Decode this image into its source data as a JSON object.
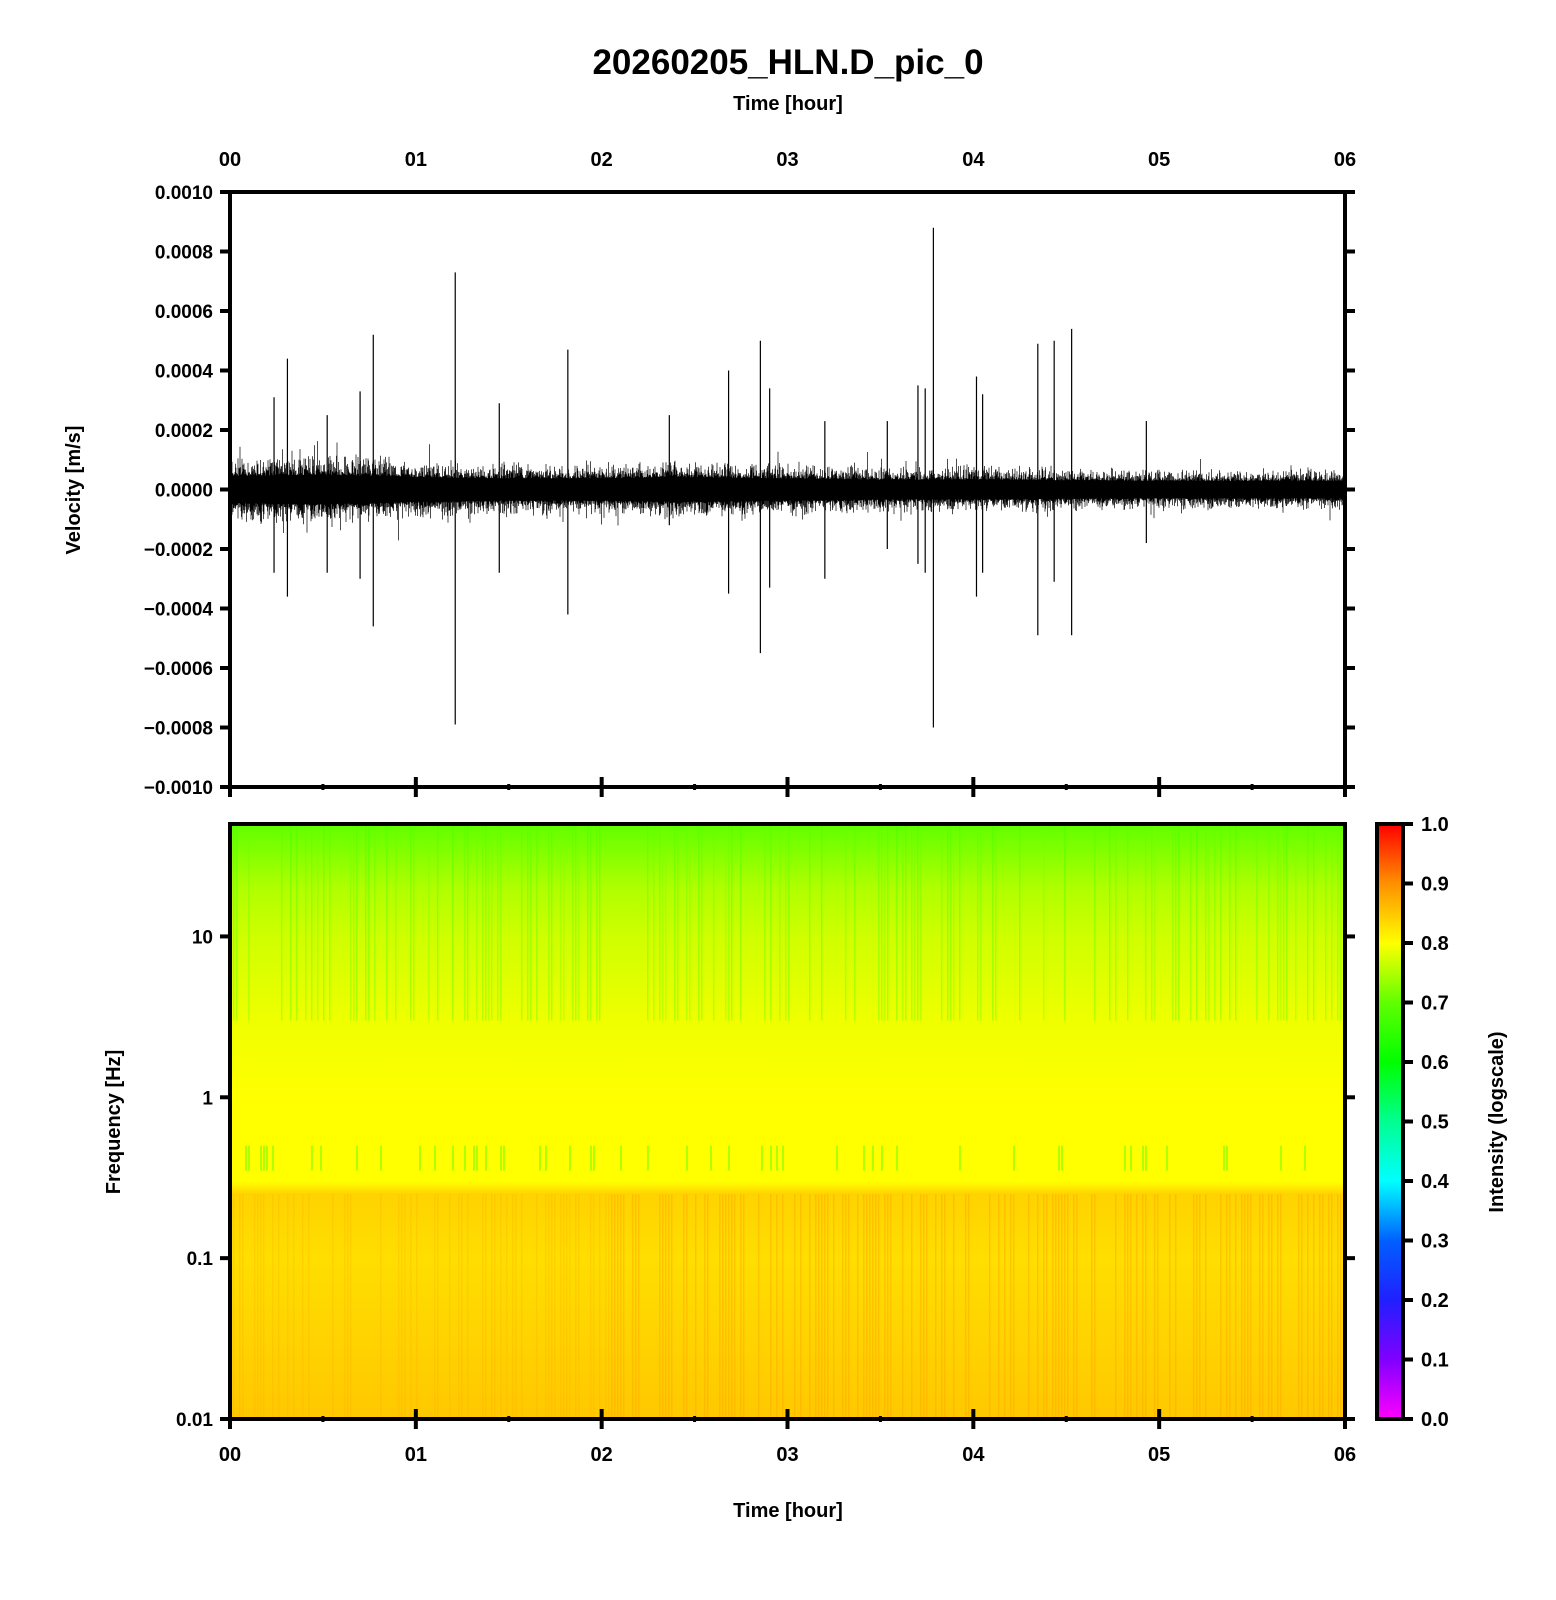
{
  "title": "20260205_HLN.D_pic_0",
  "chart_data": [
    {
      "type": "line",
      "name": "waveform",
      "top_xlabel": "Time [hour]",
      "ylabel": "Velocity [m/s]",
      "xlim": [
        0,
        6
      ],
      "ylim": [
        -0.001,
        0.001
      ],
      "x_tick_labels": [
        "00",
        "01",
        "02",
        "03",
        "04",
        "05",
        "06"
      ],
      "y_tick_labels": [
        "0.0010",
        "0.0008",
        "0.0006",
        "0.0004",
        "0.0002",
        "0.0000",
        "−0.0002",
        "−0.0004",
        "−0.0006",
        "−0.0008",
        "−0.0010"
      ],
      "y_tick_values": [
        0.001,
        0.0008,
        0.0006,
        0.0004,
        0.0002,
        0,
        -0.0002,
        -0.0004,
        -0.0006,
        -0.0008,
        -0.001
      ],
      "noise_envelope": [
        [
          0,
          0.00011
        ],
        [
          0.5,
          0.00012
        ],
        [
          1,
          0.0001
        ],
        [
          1.5,
          9e-05
        ],
        [
          2,
          9e-05
        ],
        [
          2.4,
          0.0001
        ],
        [
          3,
          9e-05
        ],
        [
          3.5,
          8e-05
        ],
        [
          4,
          8e-05
        ],
        [
          5,
          7e-05
        ],
        [
          6,
          7e-05
        ]
      ],
      "spikes": [
        {
          "hour": 0.237,
          "max": 0.00031,
          "min": -0.00028
        },
        {
          "hour": 0.309,
          "max": 0.00044,
          "min": -0.00036
        },
        {
          "hour": 0.523,
          "max": 0.00025,
          "min": -0.00028
        },
        {
          "hour": 0.7,
          "max": 0.00033,
          "min": -0.0003
        },
        {
          "hour": 0.771,
          "max": 0.00052,
          "min": -0.00046
        },
        {
          "hour": 1.212,
          "max": 0.00073,
          "min": -0.00079
        },
        {
          "hour": 1.449,
          "max": 0.00029,
          "min": -0.00028
        },
        {
          "hour": 1.818,
          "max": 0.00047,
          "min": -0.00042
        },
        {
          "hour": 2.364,
          "max": 0.00025,
          "min": -0.00012
        },
        {
          "hour": 2.683,
          "max": 0.0004,
          "min": -0.00035
        },
        {
          "hour": 2.854,
          "max": 0.0005,
          "min": -0.00055
        },
        {
          "hour": 2.904,
          "max": 0.00034,
          "min": -0.00033
        },
        {
          "hour": 3.201,
          "max": 0.00023,
          "min": -0.0003
        },
        {
          "hour": 3.537,
          "max": 0.00023,
          "min": -0.0002
        },
        {
          "hour": 3.702,
          "max": 0.00035,
          "min": -0.00025
        },
        {
          "hour": 3.741,
          "max": 0.00034,
          "min": -0.00028
        },
        {
          "hour": 3.785,
          "max": 0.00088,
          "min": -0.0008
        },
        {
          "hour": 4.017,
          "max": 0.00038,
          "min": -0.00036
        },
        {
          "hour": 4.05,
          "max": 0.00032,
          "min": -0.00028
        },
        {
          "hour": 4.347,
          "max": 0.00049,
          "min": -0.00049
        },
        {
          "hour": 4.435,
          "max": 0.0005,
          "min": -0.00031
        },
        {
          "hour": 4.529,
          "max": 0.00054,
          "min": -0.00049
        },
        {
          "hour": 4.931,
          "max": 0.00023,
          "min": -0.00018
        }
      ]
    },
    {
      "type": "heatmap",
      "name": "spectrogram",
      "xlabel": "Time [hour]",
      "ylabel": "Frequency [Hz]",
      "xlim": [
        0,
        6
      ],
      "ylim": [
        0.01,
        50
      ],
      "yscale": "log",
      "x_tick_labels": [
        "00",
        "01",
        "02",
        "03",
        "04",
        "05",
        "06"
      ],
      "y_tick_labels": [
        "0.01",
        "0.1",
        "1",
        "10"
      ],
      "y_tick_values": [
        0.01,
        0.1,
        1,
        10
      ],
      "intensity_profile": [
        [
          50,
          0.7
        ],
        [
          20,
          0.75
        ],
        [
          10,
          0.77
        ],
        [
          3,
          0.79
        ],
        [
          1,
          0.8
        ],
        [
          0.3,
          0.8
        ],
        [
          0.25,
          0.84
        ],
        [
          0.1,
          0.83
        ],
        [
          0.01,
          0.85
        ]
      ],
      "colorbar": {
        "label": "Intensity (logscale)",
        "range": [
          0,
          1
        ],
        "tick_labels": [
          "0.0",
          "0.1",
          "0.2",
          "0.3",
          "0.4",
          "0.5",
          "0.6",
          "0.7",
          "0.8",
          "0.9",
          "1.0"
        ],
        "stops": [
          [
            0,
            "#ff00ff"
          ],
          [
            0.1,
            "#8000ff"
          ],
          [
            0.2,
            "#2020ff"
          ],
          [
            0.3,
            "#0060ff"
          ],
          [
            0.4,
            "#00ffff"
          ],
          [
            0.5,
            "#00ff90"
          ],
          [
            0.6,
            "#00ff00"
          ],
          [
            0.7,
            "#60ff00"
          ],
          [
            0.8,
            "#ffff00"
          ],
          [
            0.9,
            "#ff9000"
          ],
          [
            1.0,
            "#ff0000"
          ]
        ]
      }
    }
  ]
}
